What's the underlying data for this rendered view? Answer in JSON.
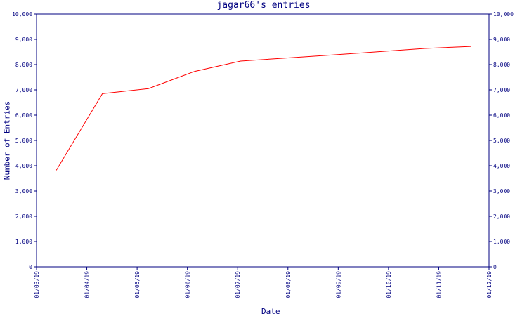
{
  "chart_data": {
    "type": "line",
    "title": "jagar66's entries",
    "xlabel": "Date",
    "ylabel": "Number of Entries",
    "x_tick_labels": [
      "01/03/19",
      "01/04/19",
      "01/05/19",
      "01/06/19",
      "01/07/19",
      "01/08/19",
      "01/09/19",
      "01/10/19",
      "01/11/19",
      "01/12/19"
    ],
    "y_tick_labels": [
      "0",
      "1,000",
      "2,000",
      "3,000",
      "4,000",
      "5,000",
      "6,000",
      "7,000",
      "8,000",
      "9,000",
      "10,000"
    ],
    "ylim": [
      0,
      10000
    ],
    "xlim": [
      "2019-03-01",
      "2019-12-01"
    ],
    "grid": false,
    "colors": {
      "axis": "#000080",
      "line": "#ff0000"
    },
    "series": [
      {
        "x": [
          "2019-03-13",
          "2019-04-10",
          "2019-05-08",
          "2019-06-05",
          "2019-07-03",
          "2019-07-31",
          "2019-08-28",
          "2019-09-25",
          "2019-10-23",
          "2019-11-20"
        ],
        "values": [
          3820,
          6850,
          7050,
          7730,
          8140,
          8260,
          8380,
          8510,
          8640,
          8720
        ]
      }
    ]
  }
}
